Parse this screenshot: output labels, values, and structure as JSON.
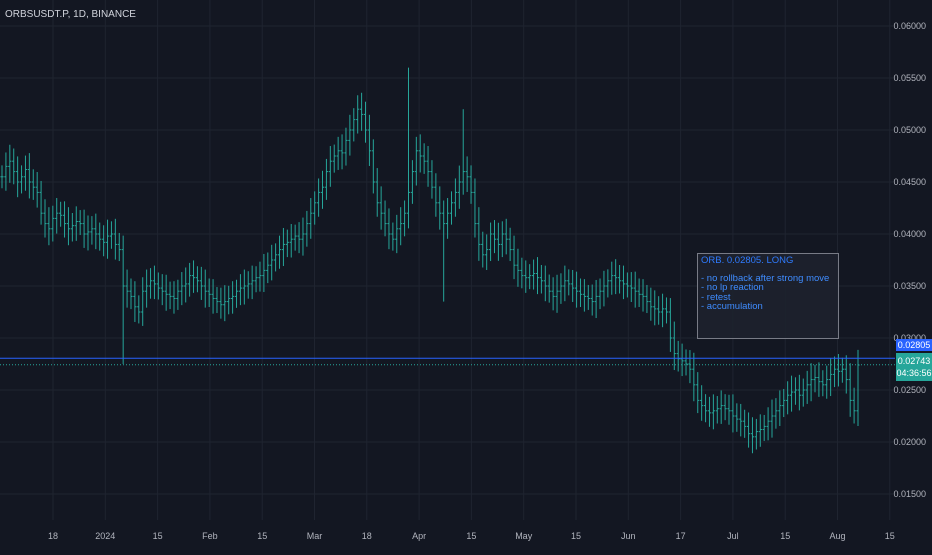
{
  "header": {
    "symbol": "ORBSUSDT.P, 1D, BINANCE"
  },
  "colors": {
    "background": "#131722",
    "grid": "#1f2430",
    "bar": "#26a69a",
    "horizontal_line": "#2962ff",
    "note_text": "#2962ff"
  },
  "note": {
    "title": "ORB. 0.02805. LONG",
    "lines": [
      "- no rollback after strong move",
      "- no lp reaction",
      "- retest",
      "- accumulation"
    ]
  },
  "price_tags": {
    "line_level": "0.02805",
    "last_price": "0.02743",
    "countdown": "04:36:56"
  },
  "chart_data": {
    "type": "ohlc-bar",
    "title": "ORBSUSDT.P, 1D, BINANCE",
    "y_ticks": [
      "0.06000",
      "0.05500",
      "0.05000",
      "0.04500",
      "0.04000",
      "0.03500",
      "0.03000",
      "0.02500",
      "0.02000",
      "0.01500"
    ],
    "x_ticks": [
      "18",
      "2024",
      "15",
      "Feb",
      "15",
      "Mar",
      "18",
      "Apr",
      "15",
      "May",
      "15",
      "Jun",
      "17",
      "Jul",
      "15",
      "Aug",
      "15"
    ],
    "ylim": [
      0.0125,
      0.0625
    ],
    "horizontal_line": 0.02805,
    "last_price": 0.02743,
    "grid": true,
    "series": [
      {
        "values": [
          0.0455,
          0.0465,
          0.047,
          0.046,
          0.045,
          0.0455,
          0.0462,
          0.045,
          0.0445,
          0.044,
          0.042,
          0.041,
          0.0405,
          0.0415,
          0.042,
          0.0418,
          0.041,
          0.0405,
          0.0408,
          0.0412,
          0.041,
          0.04,
          0.0402,
          0.0405,
          0.04,
          0.0395,
          0.0392,
          0.0398,
          0.04,
          0.039,
          0.0385,
          0.035,
          0.0345,
          0.034,
          0.033,
          0.0325,
          0.0345,
          0.035,
          0.0355,
          0.0352,
          0.0348,
          0.0345,
          0.0342,
          0.034,
          0.0338,
          0.0345,
          0.035,
          0.0352,
          0.036,
          0.0358,
          0.0355,
          0.035,
          0.0345,
          0.0342,
          0.0338,
          0.0335,
          0.0332,
          0.0335,
          0.0338,
          0.034,
          0.0345,
          0.0348,
          0.035,
          0.0352,
          0.0355,
          0.0358,
          0.036,
          0.0365,
          0.037,
          0.0375,
          0.038,
          0.0385,
          0.039,
          0.0392,
          0.0395,
          0.0398,
          0.0395,
          0.04,
          0.041,
          0.042,
          0.043,
          0.044,
          0.0445,
          0.046,
          0.047,
          0.0475,
          0.048,
          0.0478,
          0.049,
          0.05,
          0.051,
          0.052,
          0.0515,
          0.05,
          0.048,
          0.045,
          0.043,
          0.042,
          0.041,
          0.04,
          0.0395,
          0.0405,
          0.041,
          0.042,
          0.044,
          0.046,
          0.048,
          0.0475,
          0.047,
          0.046,
          0.0445,
          0.043,
          0.042,
          0.041,
          0.042,
          0.043,
          0.044,
          0.045,
          0.046,
          0.0455,
          0.044,
          0.041,
          0.039,
          0.038,
          0.0385,
          0.04,
          0.0395,
          0.039,
          0.04,
          0.0395,
          0.0385,
          0.037,
          0.0365,
          0.036,
          0.0358,
          0.036,
          0.0362,
          0.0358,
          0.0355,
          0.035,
          0.0345,
          0.034,
          0.0345,
          0.035,
          0.0355,
          0.0352,
          0.0348,
          0.0345,
          0.0342,
          0.034,
          0.0338,
          0.0335,
          0.034,
          0.0345,
          0.035,
          0.0355,
          0.036,
          0.0358,
          0.0355,
          0.0352,
          0.035,
          0.0348,
          0.0345,
          0.0342,
          0.034,
          0.0335,
          0.033,
          0.0328,
          0.0325,
          0.0328,
          0.0325,
          0.03,
          0.0285,
          0.028,
          0.0278,
          0.0275,
          0.027,
          0.0255,
          0.024,
          0.0235,
          0.023,
          0.0228,
          0.023,
          0.0232,
          0.0235,
          0.0232,
          0.023,
          0.0225,
          0.0222,
          0.022,
          0.0215,
          0.0208,
          0.0205,
          0.021,
          0.0212,
          0.0215,
          0.022,
          0.0225,
          0.023,
          0.0235,
          0.024,
          0.0245,
          0.0248,
          0.025,
          0.0245,
          0.025,
          0.0255,
          0.026,
          0.0262,
          0.0258,
          0.0255,
          0.026,
          0.0265,
          0.027,
          0.0268,
          0.027,
          0.026,
          0.024,
          0.023,
          0.0274
        ]
      }
    ]
  }
}
